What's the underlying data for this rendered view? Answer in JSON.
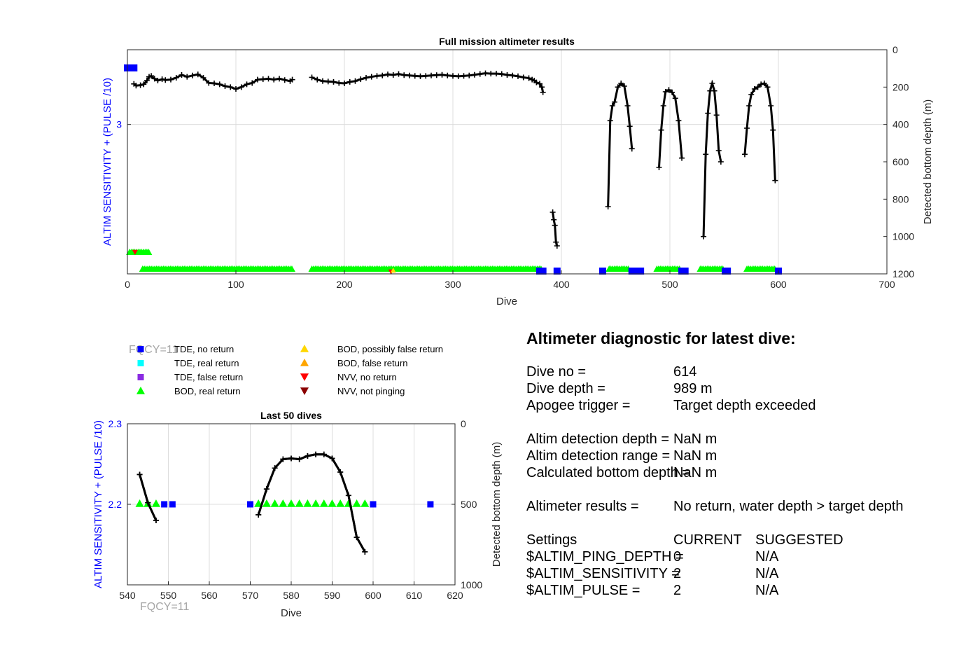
{
  "chart_data": [
    {
      "type": "scatter",
      "title": "Full mission altimeter results",
      "xlabel": "Dive",
      "ylabel_left": "ALTIM SENSITIVITY + (PULSE /10)",
      "ylabel_right": "Detected bottom depth (m)",
      "xlim": [
        0,
        700
      ],
      "xticks": [
        "0",
        "100",
        "200",
        "300",
        "400",
        "500",
        "600",
        "700"
      ],
      "ylim_left": [
        2.2,
        3.4
      ],
      "yticks_left": [
        "3"
      ],
      "ylim_right": [
        1200,
        0
      ],
      "yticks_right": [
        "0",
        "200",
        "400",
        "600",
        "800",
        "1000",
        "1200"
      ],
      "grid": true,
      "bottom_depth_segments": [
        {
          "x": [
            6,
            8,
            12,
            15,
            18,
            20,
            22,
            25,
            28,
            32,
            35,
            40,
            45,
            50,
            55,
            60,
            65,
            70,
            75,
            80,
            85,
            90,
            95,
            100,
            105,
            110,
            115,
            120,
            125,
            130,
            135,
            140,
            145,
            150,
            152
          ],
          "y": [
            183,
            192,
            190,
            185,
            165,
            145,
            140,
            155,
            165,
            158,
            162,
            160,
            150,
            135,
            145,
            138,
            132,
            150,
            178,
            180,
            185,
            195,
            200,
            210,
            200,
            185,
            178,
            160,
            158,
            155,
            160,
            155,
            162,
            168,
            160
          ]
        },
        {
          "x": [
            170,
            175,
            180,
            185,
            190,
            195,
            200,
            205,
            210,
            215,
            220,
            225,
            230,
            235,
            240,
            245,
            250,
            255,
            260,
            265,
            270,
            275,
            280,
            285,
            290,
            295,
            300,
            305,
            310,
            315,
            320,
            325,
            330,
            335,
            340,
            345,
            350,
            355,
            360,
            365,
            370,
            373,
            375,
            377,
            380,
            382,
            383
          ],
          "y": [
            148,
            160,
            168,
            170,
            172,
            178,
            180,
            172,
            168,
            158,
            150,
            145,
            140,
            138,
            132,
            135,
            130,
            136,
            138,
            140,
            142,
            140,
            138,
            136,
            134,
            138,
            140,
            142,
            140,
            138,
            134,
            130,
            126,
            128,
            128,
            130,
            135,
            138,
            142,
            148,
            152,
            160,
            165,
            175,
            182,
            200,
            228
          ]
        },
        {
          "x": [
            392,
            393,
            394,
            395,
            396
          ],
          "y": [
            870,
            910,
            940,
            1030,
            1050
          ]
        },
        {
          "x": [
            443,
            445,
            447,
            449,
            452,
            455,
            458,
            461,
            463,
            465
          ],
          "y": [
            840,
            380,
            300,
            280,
            200,
            180,
            195,
            300,
            410,
            530
          ]
        },
        {
          "x": [
            490,
            492,
            494,
            496,
            499,
            502,
            505,
            508,
            511
          ],
          "y": [
            630,
            430,
            300,
            225,
            215,
            228,
            260,
            380,
            580
          ]
        },
        {
          "x": [
            531,
            533,
            535,
            537,
            539,
            541,
            543,
            545,
            547
          ],
          "y": [
            1000,
            560,
            340,
            220,
            180,
            220,
            350,
            540,
            600
          ]
        },
        {
          "x": [
            569,
            571,
            573,
            575,
            578,
            581,
            584,
            587,
            590,
            593,
            595,
            597
          ],
          "y": [
            560,
            420,
            300,
            240,
            210,
            200,
            185,
            180,
            200,
            300,
            430,
            700
          ]
        }
      ],
      "markers": [
        {
          "kind": "BOD, real return",
          "band": "low",
          "ranges": [
            [
              2,
              20
            ],
            [
              14,
              152
            ],
            [
              170,
              382
            ],
            [
              444,
              463
            ],
            [
              488,
              510
            ],
            [
              528,
              550
            ],
            [
              571,
              598
            ]
          ]
        },
        {
          "kind": "TDE, no return",
          "points": [
            0,
            2,
            4,
            6,
            380,
            383,
            396,
            438,
            465,
            468,
            470,
            473,
            511,
            514,
            551,
            553,
            600
          ]
        }
      ]
    },
    {
      "type": "scatter",
      "title": "Last 50 dives",
      "xlabel": "Dive",
      "ylabel_left": "ALTIM SENSITIVITY + (PULSE /10)",
      "ylabel_right": "Detected bottom depth (m)",
      "xlim": [
        540,
        620
      ],
      "xticks": [
        "540",
        "550",
        "560",
        "570",
        "580",
        "590",
        "600",
        "610",
        "620"
      ],
      "ylim_left": [
        2.1,
        2.3
      ],
      "yticks_left": [
        "2.2",
        "2.3"
      ],
      "ylim_right": [
        1000,
        0
      ],
      "yticks_right": [
        "0",
        "500",
        "1000"
      ],
      "grid": true,
      "bottom_depth_segments": [
        {
          "x": [
            543,
            545,
            547
          ],
          "y": [
            315,
            490,
            600
          ]
        },
        {
          "x": [
            572,
            574,
            576,
            578,
            580,
            582,
            584,
            586,
            588,
            590,
            592,
            594,
            596,
            598
          ],
          "y": [
            565,
            405,
            275,
            220,
            215,
            220,
            200,
            190,
            190,
            215,
            300,
            445,
            705,
            795
          ]
        }
      ],
      "bod_real_return": {
        "y": 2.2,
        "x": [
          543,
          545,
          547,
          572,
          574,
          576,
          578,
          580,
          582,
          584,
          586,
          588,
          590,
          592,
          594,
          596,
          598
        ]
      },
      "tde_no_return": {
        "y": 2.2,
        "x": [
          549,
          551,
          570,
          600,
          614
        ]
      }
    }
  ],
  "legend": [
    {
      "label": "TDE, no return",
      "shape": "square",
      "color": "#0000ff"
    },
    {
      "label": "TDE, real return",
      "shape": "square",
      "color": "#00ffff"
    },
    {
      "label": "TDE, false return",
      "shape": "square",
      "color": "#8a2be2"
    },
    {
      "label": "BOD, real return",
      "shape": "triangle-up",
      "color": "#00ff00"
    },
    {
      "label": "BOD, possibly false return",
      "shape": "triangle-up",
      "color": "#ffd700"
    },
    {
      "label": "BOD, false return",
      "shape": "triangle-up",
      "color": "#ffa500"
    },
    {
      "label": "NVV, no return",
      "shape": "triangle-down",
      "color": "#ff0000"
    },
    {
      "label": "NVV, not pinging",
      "shape": "triangle-down",
      "color": "#8b0000"
    }
  ],
  "fqcy_label": "FQCY=11",
  "diagnostic": {
    "title": "Altimeter diagnostic for latest dive:",
    "dive_no_label": "Dive no =",
    "dive_no": "614",
    "dive_depth_label": "Dive depth =",
    "dive_depth": "989 m",
    "apogee_label": "Apogee trigger =",
    "apogee": "Target depth exceeded",
    "det_depth_label": "Altim detection depth =",
    "det_depth": "NaN m",
    "det_range_label": "Altim detection range =",
    "det_range": "NaN m",
    "calc_depth_label": "Calculated bottom depth =",
    "calc_depth": "NaN m",
    "results_label": "Altimeter results =",
    "results": "No return, water depth > target depth",
    "settings_label": "Settings",
    "current_label": "CURRENT",
    "suggested_label": "SUGGESTED",
    "ping_depth_label": "$ALTIM_PING_DEPTH =",
    "ping_depth_current": "0",
    "ping_depth_suggested": "N/A",
    "sensitivity_label": "$ALTIM_SENSITIVITY =",
    "sensitivity_current": "2",
    "sensitivity_suggested": "N/A",
    "pulse_label": "$ALTIM_PULSE =",
    "pulse_current": "2",
    "pulse_suggested": "N/A"
  },
  "colors": {
    "depth_line": "#000000",
    "tde_no_return": "#0000ff",
    "bod_real_return": "#00ff00",
    "axis_left": "#0000ff"
  }
}
